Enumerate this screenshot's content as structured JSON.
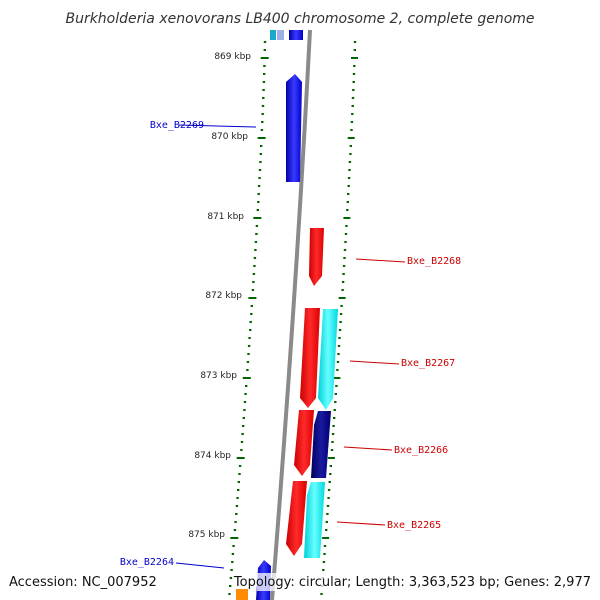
{
  "title": "Burkholderia xenovorans LB400 chromosome 2, complete genome",
  "footer": {
    "accession": "Accession: NC_007952",
    "summary": "Topology: circular; Length: 3,363,523 bp; Genes: 2,977"
  },
  "ruler_labels": [
    "869 kbp",
    "870 kbp",
    "871 kbp",
    "872 kbp",
    "873 kbp",
    "874 kbp",
    "875 kbp"
  ],
  "gene_labels": [
    {
      "id": "Bxe_B2269",
      "color": "#0000cc"
    },
    {
      "id": "Bxe_B2268",
      "color": "#cc0000"
    },
    {
      "id": "Bxe_B2267",
      "color": "#cc0000"
    },
    {
      "id": "Bxe_B2266",
      "color": "#cc0000"
    },
    {
      "id": "Bxe_B2265",
      "color": "#cc0000"
    },
    {
      "id": "Bxe_B2264",
      "color": "#0000cc"
    }
  ],
  "colors": {
    "forward_gene": "#0000ff",
    "reverse_gene": "#ff0000",
    "cyan_feature": "#00e5ee",
    "navy_feature": "#000080",
    "orange_feature": "#ff8c00",
    "backbone": "#888888",
    "tick": "#006600"
  }
}
